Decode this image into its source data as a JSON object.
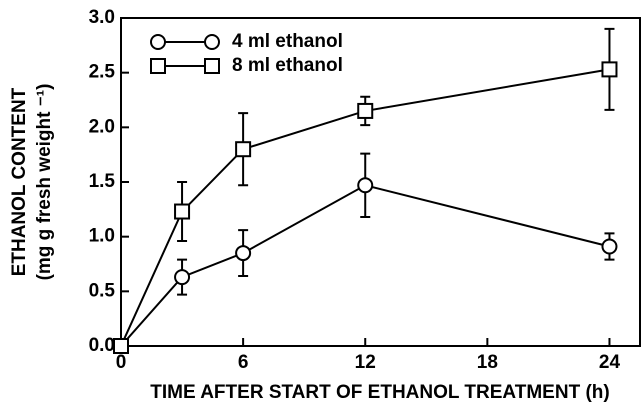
{
  "chart_data": {
    "type": "line",
    "xlabel": "TIME AFTER START OF ETHANOL TREATMENT (h)",
    "ylabel": [
      "ETHANOL CONTENT",
      "(mg g fresh weight ⁻¹)"
    ],
    "x": [
      0,
      3,
      6,
      12,
      24
    ],
    "series": [
      {
        "name": "4 ml ethanol",
        "marker": "circle",
        "color": "#000000",
        "values": [
          0,
          0.63,
          0.85,
          1.47,
          0.91
        ],
        "errors": [
          0,
          0.16,
          0.21,
          0.29,
          0.12
        ]
      },
      {
        "name": "8 ml ethanol",
        "marker": "square",
        "color": "#000000",
        "values": [
          0,
          1.23,
          1.8,
          2.15,
          2.53
        ],
        "errors": [
          0,
          0.27,
          0.33,
          0.13,
          0.37
        ]
      }
    ],
    "xlim": [
      0,
      25.5
    ],
    "xticks": [
      0,
      6,
      12,
      18,
      24
    ],
    "ylim": [
      0,
      3
    ],
    "yticks": [
      {
        "value": 0,
        "label": "0.0"
      },
      {
        "value": 0.5,
        "label": "0.5"
      },
      {
        "value": 1,
        "label": "1.0"
      },
      {
        "value": 1.5,
        "label": "1.5"
      },
      {
        "value": 2,
        "label": "2.0"
      },
      {
        "value": 2.5,
        "label": "2.5"
      },
      {
        "value": 3,
        "label": "3.0"
      }
    ],
    "legend": "upper left"
  }
}
